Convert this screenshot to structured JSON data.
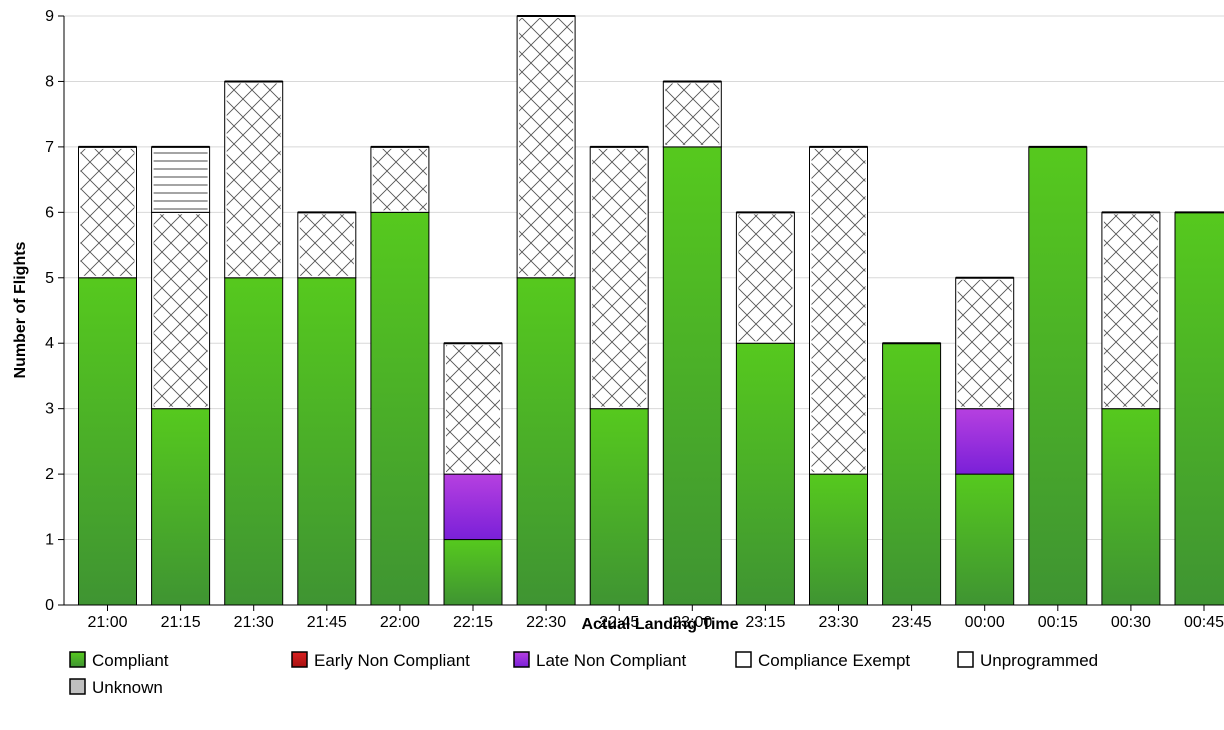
{
  "chart_data": {
    "type": "bar",
    "stacked": true,
    "xlabel": "Actual Landing Time",
    "ylabel": "Number of Flights",
    "ylim": [
      0,
      9
    ],
    "yticks": [
      "0",
      "1",
      "2",
      "3",
      "4",
      "5",
      "6",
      "7",
      "8",
      "9"
    ],
    "grid": true,
    "categories": [
      "21:00",
      "21:15",
      "21:30",
      "21:45",
      "22:00",
      "22:15",
      "22:30",
      "22:45",
      "23:00",
      "23:15",
      "23:30",
      "23:45",
      "00:00",
      "00:15",
      "00:30",
      "00:45"
    ],
    "series": [
      {
        "name": "Compliant",
        "color": "#4cc020",
        "style": "gradient-green",
        "values": [
          5,
          3,
          5,
          5,
          6,
          1,
          5,
          3,
          7,
          4,
          2,
          4,
          2,
          7,
          3,
          6
        ]
      },
      {
        "name": "Early Non Compliant",
        "color": "#c81818",
        "style": "solid",
        "values": [
          0,
          0,
          0,
          0,
          0,
          0,
          0,
          0,
          0,
          0,
          0,
          0,
          0,
          0,
          0,
          0
        ]
      },
      {
        "name": "Late Non Compliant",
        "color": "#9a30e0",
        "style": "gradient-purple",
        "values": [
          0,
          0,
          0,
          0,
          0,
          1,
          0,
          0,
          0,
          0,
          0,
          0,
          1,
          0,
          0,
          0
        ]
      },
      {
        "name": "Compliance Exempt",
        "color": "#ffffff",
        "style": "crosshatch",
        "values": [
          2,
          3,
          3,
          1,
          1,
          2,
          4,
          4,
          1,
          2,
          5,
          0,
          2,
          0,
          3,
          0
        ]
      },
      {
        "name": "Unprogrammed",
        "color": "#ffffff",
        "style": "horizontal-lines",
        "values": [
          0,
          1,
          0,
          0,
          0,
          0,
          0,
          0,
          0,
          0,
          0,
          0,
          0,
          0,
          0,
          0
        ]
      },
      {
        "name": "Unknown",
        "color": "#c0c0c0",
        "style": "solid",
        "values": [
          0,
          0,
          0,
          0,
          0,
          0,
          0,
          0,
          0,
          0,
          0,
          0,
          0,
          0,
          0,
          0
        ]
      }
    ],
    "legend": {
      "placement": "bottom"
    }
  }
}
